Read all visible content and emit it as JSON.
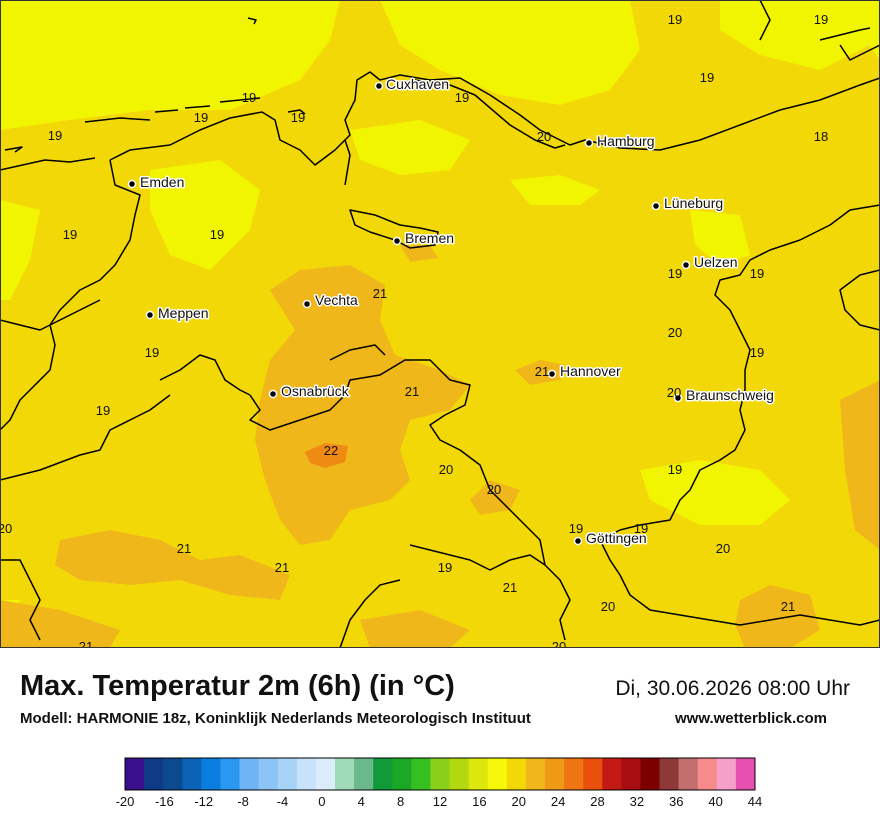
{
  "map": {
    "colors": {
      "base": "#f3d808",
      "cool": "#f2f500",
      "warm": "#f0b71a",
      "hot": "#ef8a13",
      "border": "#000000"
    },
    "cities": [
      {
        "name": "Cuxhaven"
      },
      {
        "name": "Hamburg"
      },
      {
        "name": "Emden"
      },
      {
        "name": "Lüneburg"
      },
      {
        "name": "Bremen"
      },
      {
        "name": "Uelzen"
      },
      {
        "name": "Vechta"
      },
      {
        "name": "Meppen"
      },
      {
        "name": "Hannover"
      },
      {
        "name": "Osnabrück"
      },
      {
        "name": "Braunschweig"
      },
      {
        "name": "Göttingen"
      }
    ],
    "values": [
      "19",
      "19",
      "19",
      "19",
      "19",
      "19",
      "19",
      "20",
      "18",
      "19",
      "19",
      "19",
      "19",
      "21",
      "19",
      "20",
      "19",
      "19",
      "21",
      "21",
      "20",
      "19",
      "22",
      "20",
      "20",
      "19",
      "19",
      "19",
      "20",
      "20",
      "21",
      "21",
      "19",
      "21",
      "20",
      "21",
      "21",
      "20"
    ]
  },
  "footer": {
    "title": "Max. Temperatur 2m (6h) (in °C)",
    "subtitle": "Modell: HARMONIE 18z, Koninklijk Nederlands Meteorologisch Instituut",
    "datetime": "Di, 30.06.2026 08:00 Uhr",
    "website": "www.wetterblick.com"
  },
  "legend": {
    "colors": [
      "#3a0f8c",
      "#0f3a85",
      "#0b4a8f",
      "#0b62b4",
      "#0a7ee0",
      "#2a97f2",
      "#6fb5f4",
      "#8cc4f6",
      "#a7d3f7",
      "#c7e3fb",
      "#dcecfb",
      "#9fdbb9",
      "#6cb88d",
      "#109a3a",
      "#1ba826",
      "#35c01f",
      "#8ad01a",
      "#b4d80f",
      "#dde60d",
      "#f7f70a",
      "#f3d808",
      "#f0b61b",
      "#ef9917",
      "#ef7412",
      "#e9500d",
      "#c41a14",
      "#a80d12",
      "#7c0000",
      "#8e3838",
      "#c36f6f",
      "#f78a8a",
      "#f5a0c8",
      "#e650b0"
    ],
    "ticks": [
      "-20",
      "-16",
      "-12",
      "-8",
      "-4",
      "0",
      "4",
      "8",
      "12",
      "16",
      "20",
      "24",
      "28",
      "32",
      "36",
      "40",
      "44"
    ]
  }
}
